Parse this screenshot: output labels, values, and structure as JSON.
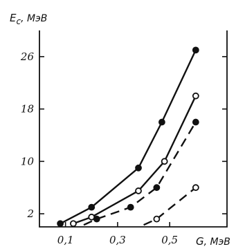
{
  "chart_data": {
    "type": "line",
    "ylabel_symbol": "E",
    "ylabel_subscript": "c",
    "ylabel_unit": ", МэВ",
    "xlabel_symbol": "G",
    "xlabel_unit": ", МэВ",
    "xticks": [
      {
        "value": 0.1,
        "label": "0,1"
      },
      {
        "value": 0.3,
        "label": "0,3"
      },
      {
        "value": 0.5,
        "label": "0,5"
      }
    ],
    "yticks": [
      {
        "value": 2,
        "label": "2"
      },
      {
        "value": 10,
        "label": "10"
      },
      {
        "value": 18,
        "label": "18"
      },
      {
        "value": 26,
        "label": "26"
      }
    ],
    "xlim": [
      0.0,
      0.72
    ],
    "ylim": [
      0.0,
      30.0
    ],
    "grid": false,
    "series": [
      {
        "style": "solid",
        "marker": "filled",
        "points": [
          [
            0.08,
            0.5
          ],
          [
            0.2,
            3.0
          ],
          [
            0.38,
            9.0
          ],
          [
            0.47,
            16.0
          ],
          [
            0.6,
            27.0
          ]
        ]
      },
      {
        "style": "solid",
        "marker": "open",
        "points": [
          [
            0.13,
            0.5
          ],
          [
            0.2,
            1.5
          ],
          [
            0.38,
            5.5
          ],
          [
            0.48,
            10.0
          ],
          [
            0.6,
            20.0
          ]
        ]
      },
      {
        "style": "dashed",
        "marker": "filled",
        "points": [
          [
            0.17,
            0.3
          ],
          [
            0.22,
            1.2
          ],
          [
            0.35,
            3.0
          ],
          [
            0.45,
            6.0
          ],
          [
            0.6,
            16.0
          ]
        ]
      },
      {
        "style": "dashed",
        "marker": "open",
        "points": [
          [
            0.4,
            0.3
          ],
          [
            0.45,
            1.2
          ],
          [
            0.6,
            6.0
          ]
        ]
      }
    ]
  }
}
